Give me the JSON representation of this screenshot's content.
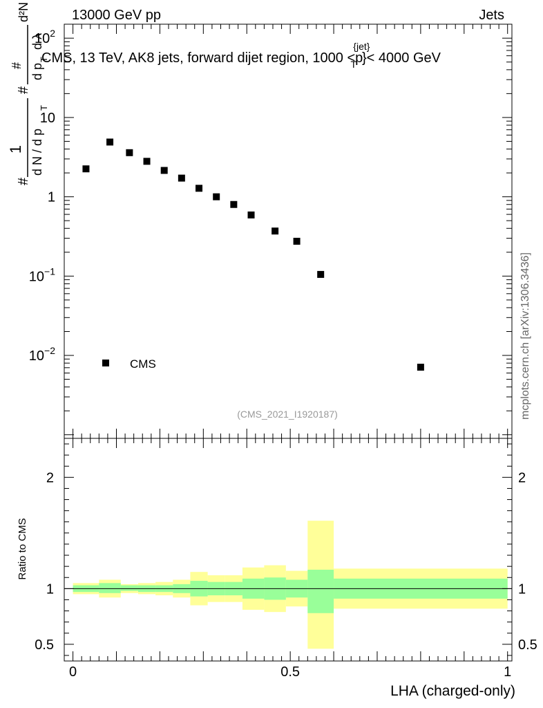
{
  "chart_data": [
    {
      "type": "scatter",
      "panel": "main",
      "header_left": "13000 GeV pp",
      "header_right": "Jets",
      "title_main": "CMS, 13 TeV, AK8 jets, forward dijet region, 1000 <p",
      "title_sup": "{jet}",
      "title_sub": "T",
      "title_end": "}< 4000 GeV",
      "ylabel": "1/(dN/dp_T) d²N/(dp_T dλ)",
      "ylabel_parts": {
        "hash": "#",
        "one": "1",
        "dn": "d N / d p",
        "t": "T",
        "d2n": "d²N",
        "dpt": "d p",
        "dl": "d λ"
      },
      "yscale": "log",
      "ylim": [
        0.0009,
        150
      ],
      "xlim": [
        -0.02,
        1.01
      ],
      "yticks": [
        {
          "value": 0.01,
          "base": "10",
          "exp": "−2"
        },
        {
          "value": 0.1,
          "base": "10",
          "exp": "−1"
        },
        {
          "value": 1,
          "base": "1",
          "exp": ""
        },
        {
          "value": 10,
          "base": "10",
          "exp": ""
        },
        {
          "value": 100,
          "base": "10",
          "exp": "2"
        }
      ],
      "series": [
        {
          "name": "CMS",
          "marker": "square",
          "x": [
            0.03,
            0.085,
            0.13,
            0.17,
            0.21,
            0.25,
            0.29,
            0.33,
            0.37,
            0.41,
            0.465,
            0.515,
            0.57,
            0.8
          ],
          "y": [
            2.25,
            4.9,
            3.6,
            2.8,
            2.15,
            1.72,
            1.28,
            1.0,
            0.8,
            0.59,
            0.37,
            0.275,
            0.105,
            0.0071
          ]
        }
      ],
      "legend": {
        "entries": [
          "CMS"
        ],
        "position": "lower-left"
      },
      "analysis_tag": "(CMS_2021_I1920187)",
      "watermark": "mcplots.cern.ch [arXiv:1306.3436]"
    },
    {
      "type": "area",
      "panel": "ratio",
      "ylabel": "Ratio to CMS",
      "xlabel": "LHA (charged-only)",
      "ylim": [
        0.35,
        2.35
      ],
      "xlim": [
        -0.02,
        1.01
      ],
      "xticks": [
        {
          "value": 0,
          "label": "0"
        },
        {
          "value": 0.5,
          "label": "0.5"
        },
        {
          "value": 1,
          "label": "1"
        }
      ],
      "yticks": [
        {
          "value": 0.5,
          "label": "0.5"
        },
        {
          "value": 1,
          "label": "1"
        },
        {
          "value": 2,
          "label": "2"
        }
      ],
      "reference_line": 1,
      "bands": [
        {
          "x0": 0.0,
          "x1": 0.06,
          "inner": [
            0.97,
            1.03
          ],
          "outer": [
            0.95,
            1.05
          ]
        },
        {
          "x0": 0.06,
          "x1": 0.11,
          "inner": [
            0.96,
            1.05
          ],
          "outer": [
            0.92,
            1.08
          ]
        },
        {
          "x0": 0.11,
          "x1": 0.15,
          "inner": [
            0.98,
            1.03
          ],
          "outer": [
            0.96,
            1.04
          ]
        },
        {
          "x0": 0.15,
          "x1": 0.19,
          "inner": [
            0.97,
            1.03
          ],
          "outer": [
            0.95,
            1.05
          ]
        },
        {
          "x0": 0.19,
          "x1": 0.23,
          "inner": [
            0.97,
            1.03
          ],
          "outer": [
            0.94,
            1.06
          ]
        },
        {
          "x0": 0.23,
          "x1": 0.27,
          "inner": [
            0.96,
            1.04
          ],
          "outer": [
            0.92,
            1.08
          ]
        },
        {
          "x0": 0.27,
          "x1": 0.31,
          "inner": [
            0.93,
            1.07
          ],
          "outer": [
            0.85,
            1.15
          ]
        },
        {
          "x0": 0.31,
          "x1": 0.35,
          "inner": [
            0.94,
            1.06
          ],
          "outer": [
            0.88,
            1.12
          ]
        },
        {
          "x0": 0.35,
          "x1": 0.39,
          "inner": [
            0.94,
            1.06
          ],
          "outer": [
            0.88,
            1.12
          ]
        },
        {
          "x0": 0.39,
          "x1": 0.44,
          "inner": [
            0.91,
            1.09
          ],
          "outer": [
            0.81,
            1.19
          ]
        },
        {
          "x0": 0.44,
          "x1": 0.49,
          "inner": [
            0.9,
            1.1
          ],
          "outer": [
            0.79,
            1.21
          ]
        },
        {
          "x0": 0.49,
          "x1": 0.54,
          "inner": [
            0.92,
            1.08
          ],
          "outer": [
            0.84,
            1.16
          ]
        },
        {
          "x0": 0.54,
          "x1": 0.6,
          "inner": [
            0.78,
            1.17
          ],
          "outer": [
            0.46,
            1.61
          ]
        },
        {
          "x0": 0.6,
          "x1": 1.0,
          "inner": [
            0.91,
            1.09
          ],
          "outer": [
            0.82,
            1.18
          ]
        }
      ],
      "band_colors": {
        "outer": "#ffff99",
        "inner": "#99ff99"
      }
    }
  ]
}
